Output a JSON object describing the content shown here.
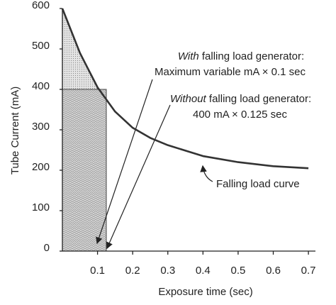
{
  "chart_data": {
    "type": "line",
    "x_label": "Exposure time (sec)",
    "y_label": "Tube Current (mA)",
    "xlim": [
      0,
      0.72
    ],
    "ylim": [
      0,
      600
    ],
    "xticks": [
      0.1,
      0.2,
      0.3,
      0.4,
      0.5,
      0.6,
      0.7
    ],
    "yticks": [
      0,
      100,
      200,
      300,
      400,
      500,
      600
    ],
    "x": [
      0,
      0.05,
      0.1,
      0.15,
      0.2,
      0.25,
      0.3,
      0.4,
      0.5,
      0.6,
      0.7
    ],
    "series": [
      {
        "name": "Falling load curve",
        "color": "#333333",
        "values": [
          600,
          490,
          405,
          345,
          305,
          280,
          262,
          235,
          220,
          210,
          205
        ]
      }
    ],
    "with_generator": {
      "italic": "With",
      "text": " falling load generator:",
      "line2": "Maximum variable mA × 0.1 sec",
      "sec": 0.1
    },
    "without_generator": {
      "italic": "Without",
      "text": " falling load generator:",
      "line2": "400 mA × 0.125 sec",
      "mA": 400,
      "sec": 0.125
    }
  }
}
